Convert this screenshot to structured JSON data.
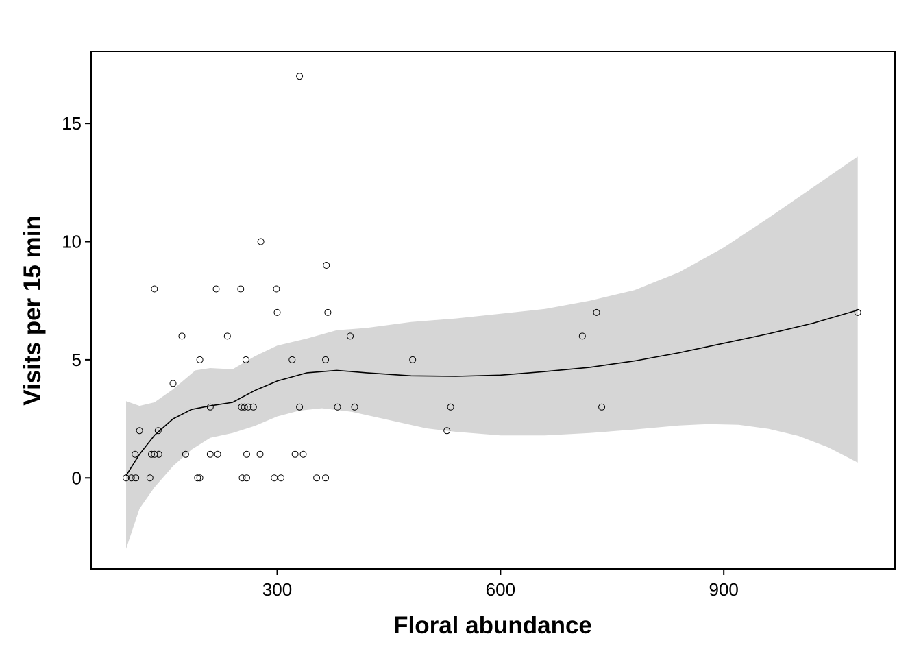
{
  "chart_data": {
    "type": "scatter",
    "title": "",
    "xlabel": "Floral abundance",
    "ylabel": "Visits per 15 min",
    "xlim": [
      50,
      1130
    ],
    "ylim": [
      -3.85,
      18.05
    ],
    "xticks": [
      300,
      600,
      900
    ],
    "yticks": [
      0,
      5,
      10,
      15
    ],
    "grid": false,
    "legend": "none",
    "point_color": "#000000",
    "band_color": "#D6D6D6",
    "line_color": "#000000",
    "series": [
      {
        "kind": "points",
        "points": [
          [
            97,
            0
          ],
          [
            104,
            0
          ],
          [
            110,
            0
          ],
          [
            129,
            0
          ],
          [
            193,
            0
          ],
          [
            196,
            0
          ],
          [
            253,
            0
          ],
          [
            259,
            0
          ],
          [
            296,
            0
          ],
          [
            305,
            0
          ],
          [
            353,
            0
          ],
          [
            365,
            0
          ],
          [
            109,
            1
          ],
          [
            131,
            1
          ],
          [
            135,
            1
          ],
          [
            141,
            1
          ],
          [
            177,
            1
          ],
          [
            210,
            1
          ],
          [
            220,
            1
          ],
          [
            259,
            1
          ],
          [
            277,
            1
          ],
          [
            324,
            1
          ],
          [
            335,
            1
          ],
          [
            115,
            2
          ],
          [
            140,
            2
          ],
          [
            528,
            2
          ],
          [
            210,
            3
          ],
          [
            252,
            3
          ],
          [
            256,
            3
          ],
          [
            261,
            3
          ],
          [
            268,
            3
          ],
          [
            330,
            3
          ],
          [
            381,
            3
          ],
          [
            404,
            3
          ],
          [
            533,
            3
          ],
          [
            736,
            3
          ],
          [
            160,
            4
          ],
          [
            196,
            5
          ],
          [
            258,
            5
          ],
          [
            320,
            5
          ],
          [
            365,
            5
          ],
          [
            482,
            5
          ],
          [
            172,
            6
          ],
          [
            233,
            6
          ],
          [
            398,
            6
          ],
          [
            710,
            6
          ],
          [
            300,
            7
          ],
          [
            368,
            7
          ],
          [
            729,
            7
          ],
          [
            1080,
            7
          ],
          [
            135,
            8
          ],
          [
            218,
            8
          ],
          [
            251,
            8
          ],
          [
            299,
            8
          ],
          [
            366,
            9
          ],
          [
            278,
            10
          ],
          [
            330,
            17
          ]
        ]
      },
      {
        "kind": "smooth",
        "fit": [
          [
            97,
            0.1
          ],
          [
            115,
            1.0
          ],
          [
            135,
            1.8
          ],
          [
            160,
            2.5
          ],
          [
            185,
            2.9
          ],
          [
            210,
            3.05
          ],
          [
            240,
            3.2
          ],
          [
            270,
            3.7
          ],
          [
            300,
            4.1
          ],
          [
            340,
            4.45
          ],
          [
            380,
            4.55
          ],
          [
            420,
            4.45
          ],
          [
            480,
            4.32
          ],
          [
            540,
            4.3
          ],
          [
            600,
            4.35
          ],
          [
            660,
            4.5
          ],
          [
            720,
            4.68
          ],
          [
            780,
            4.95
          ],
          [
            840,
            5.3
          ],
          [
            900,
            5.7
          ],
          [
            960,
            6.1
          ],
          [
            1020,
            6.55
          ],
          [
            1080,
            7.1
          ]
        ],
        "lower": [
          [
            97,
            -3.0
          ],
          [
            115,
            -1.3
          ],
          [
            135,
            -0.4
          ],
          [
            160,
            0.5
          ],
          [
            185,
            1.2
          ],
          [
            210,
            1.7
          ],
          [
            240,
            1.9
          ],
          [
            270,
            2.2
          ],
          [
            300,
            2.6
          ],
          [
            330,
            2.85
          ],
          [
            360,
            2.95
          ],
          [
            400,
            2.8
          ],
          [
            450,
            2.45
          ],
          [
            500,
            2.1
          ],
          [
            540,
            1.95
          ],
          [
            600,
            1.8
          ],
          [
            660,
            1.8
          ],
          [
            720,
            1.9
          ],
          [
            780,
            2.05
          ],
          [
            840,
            2.22
          ],
          [
            880,
            2.28
          ],
          [
            920,
            2.25
          ],
          [
            960,
            2.08
          ],
          [
            1000,
            1.78
          ],
          [
            1040,
            1.3
          ],
          [
            1080,
            0.65
          ]
        ],
        "upper": [
          [
            97,
            3.25
          ],
          [
            115,
            3.05
          ],
          [
            135,
            3.2
          ],
          [
            160,
            3.75
          ],
          [
            190,
            4.55
          ],
          [
            210,
            4.65
          ],
          [
            240,
            4.6
          ],
          [
            270,
            5.15
          ],
          [
            300,
            5.6
          ],
          [
            340,
            5.9
          ],
          [
            380,
            6.25
          ],
          [
            420,
            6.35
          ],
          [
            480,
            6.6
          ],
          [
            540,
            6.75
          ],
          [
            600,
            6.95
          ],
          [
            660,
            7.15
          ],
          [
            720,
            7.5
          ],
          [
            780,
            7.95
          ],
          [
            840,
            8.7
          ],
          [
            900,
            9.75
          ],
          [
            960,
            11.0
          ],
          [
            1020,
            12.3
          ],
          [
            1080,
            13.6
          ]
        ]
      }
    ]
  }
}
